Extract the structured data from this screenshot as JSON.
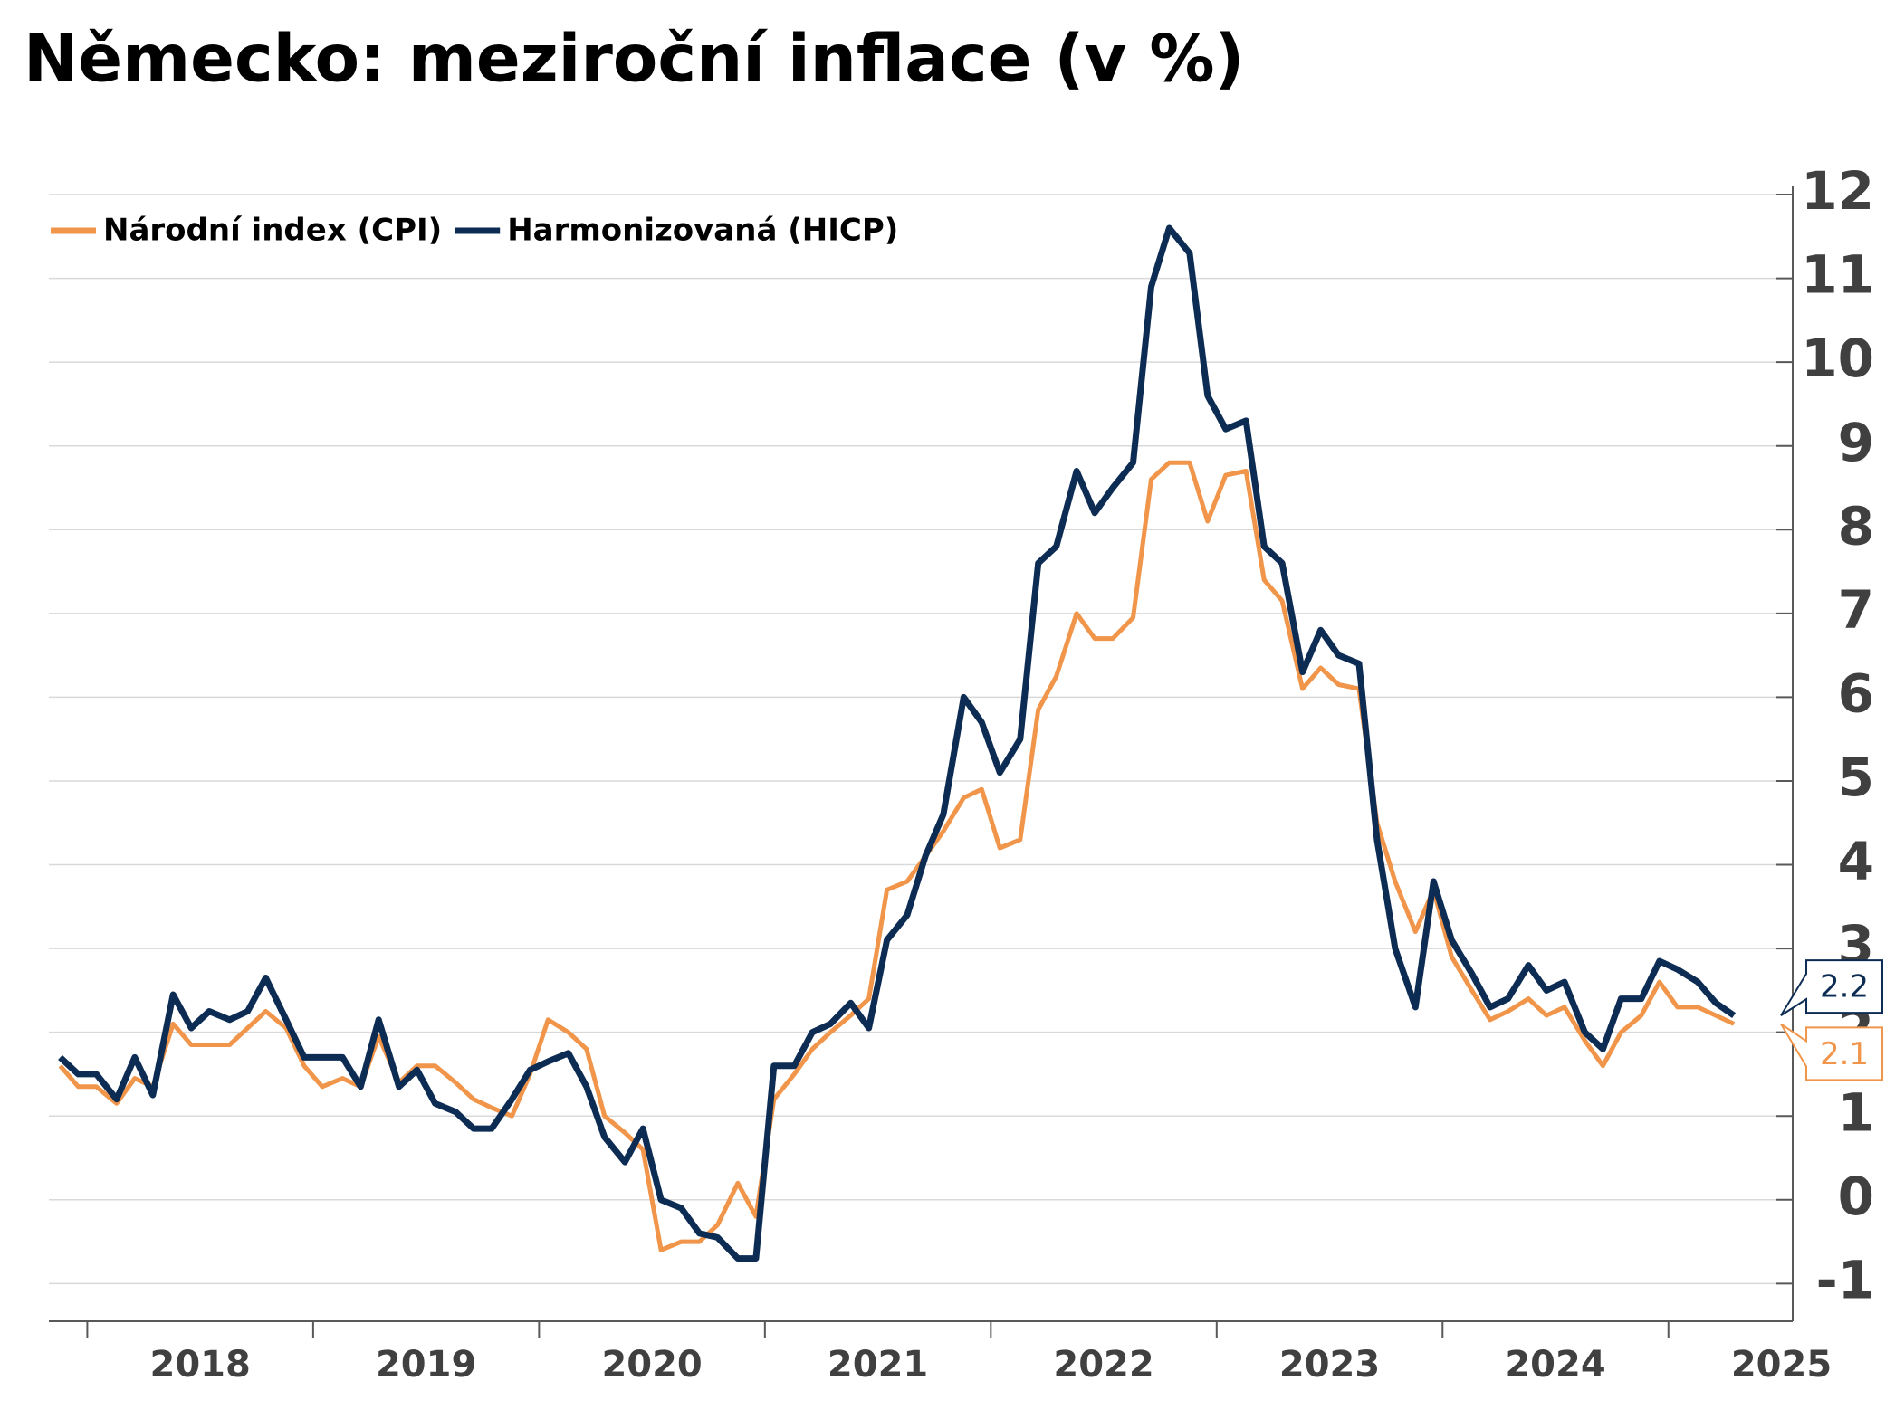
{
  "chart_data": {
    "type": "line",
    "title": "Německo: meziroční inflace (v %)",
    "x": [
      2017.88,
      2017.96,
      2018.04,
      2018.13,
      2018.21,
      2018.29,
      2018.38,
      2018.46,
      2018.54,
      2018.63,
      2018.71,
      2018.79,
      2018.88,
      2018.96,
      2019.04,
      2019.13,
      2019.21,
      2019.29,
      2019.38,
      2019.46,
      2019.54,
      2019.63,
      2019.71,
      2019.79,
      2019.88,
      2019.96,
      2020.04,
      2020.13,
      2020.21,
      2020.29,
      2020.38,
      2020.46,
      2020.54,
      2020.63,
      2020.71,
      2020.79,
      2020.88,
      2020.96,
      2021.04,
      2021.13,
      2021.21,
      2021.29,
      2021.38,
      2021.46,
      2021.54,
      2021.63,
      2021.71,
      2021.79,
      2021.88,
      2021.96,
      2022.04,
      2022.13,
      2022.21,
      2022.29,
      2022.38,
      2022.46,
      2022.54,
      2022.63,
      2022.71,
      2022.79,
      2022.88,
      2022.96,
      2023.04,
      2023.13,
      2023.21,
      2023.29,
      2023.38,
      2023.46,
      2023.54,
      2023.63,
      2023.71,
      2023.79,
      2023.88,
      2023.96,
      2024.04,
      2024.13,
      2024.21,
      2024.29,
      2024.38,
      2024.46,
      2024.54,
      2024.63,
      2024.71,
      2024.79,
      2024.88,
      2024.96,
      2025.04,
      2025.13,
      2025.21,
      2025.29
    ],
    "series": [
      {
        "name": "Národní index (CPI)",
        "color": "#f0954a",
        "values": [
          1.6,
          1.35,
          1.35,
          1.15,
          1.45,
          1.35,
          2.1,
          1.85,
          1.85,
          1.85,
          2.05,
          2.25,
          2.05,
          1.6,
          1.35,
          1.45,
          1.35,
          1.95,
          1.4,
          1.6,
          1.6,
          1.4,
          1.2,
          1.1,
          1.0,
          1.5,
          2.15,
          2.0,
          1.8,
          1.0,
          0.8,
          0.6,
          -0.6,
          -0.5,
          -0.5,
          -0.3,
          0.2,
          -0.2,
          1.2,
          1.5,
          1.8,
          2.0,
          2.2,
          2.4,
          3.7,
          3.8,
          4.1,
          4.4,
          4.8,
          4.9,
          4.2,
          4.3,
          5.85,
          6.25,
          7.0,
          6.7,
          6.7,
          6.95,
          8.6,
          8.8,
          8.8,
          8.1,
          8.65,
          8.7,
          7.4,
          7.15,
          6.1,
          6.35,
          6.15,
          6.1,
          4.5,
          3.8,
          3.2,
          3.7,
          2.9,
          2.5,
          2.15,
          2.25,
          2.4,
          2.2,
          2.3,
          1.9,
          1.6,
          2.0,
          2.2,
          2.6,
          2.3,
          2.3,
          2.2,
          2.1
        ]
      },
      {
        "name": "Harmonizovaná (HICP)",
        "color": "#0d2c54",
        "values": [
          1.7,
          1.5,
          1.5,
          1.2,
          1.7,
          1.25,
          2.45,
          2.05,
          2.25,
          2.15,
          2.25,
          2.65,
          2.15,
          1.7,
          1.7,
          1.7,
          1.35,
          2.15,
          1.35,
          1.55,
          1.15,
          1.05,
          0.85,
          0.85,
          1.2,
          1.55,
          1.65,
          1.75,
          1.35,
          0.75,
          0.45,
          0.85,
          0.0,
          -0.1,
          -0.4,
          -0.45,
          -0.7,
          -0.7,
          1.6,
          1.6,
          2.0,
          2.1,
          2.35,
          2.05,
          3.1,
          3.4,
          4.1,
          4.6,
          6.0,
          5.7,
          5.1,
          5.5,
          7.6,
          7.8,
          8.7,
          8.2,
          8.5,
          8.8,
          10.9,
          11.6,
          11.3,
          9.6,
          9.2,
          9.3,
          7.8,
          7.6,
          6.3,
          6.8,
          6.5,
          6.4,
          4.3,
          3.0,
          2.3,
          3.8,
          3.1,
          2.7,
          2.3,
          2.4,
          2.8,
          2.5,
          2.6,
          2.0,
          1.8,
          2.4,
          2.4,
          2.85,
          2.75,
          2.6,
          2.35,
          2.2
        ]
      }
    ],
    "xlim": [
      2017.83,
      2025.49
    ],
    "xticks": [
      2018,
      2019,
      2020,
      2021,
      2022,
      2023,
      2024,
      2025
    ],
    "ylim": [
      -1.45,
      12
    ],
    "yticks": [
      -1,
      0,
      1,
      2,
      3,
      4,
      5,
      6,
      7,
      8,
      9,
      10,
      11,
      12
    ],
    "grid": true,
    "legend": "top-left"
  }
}
